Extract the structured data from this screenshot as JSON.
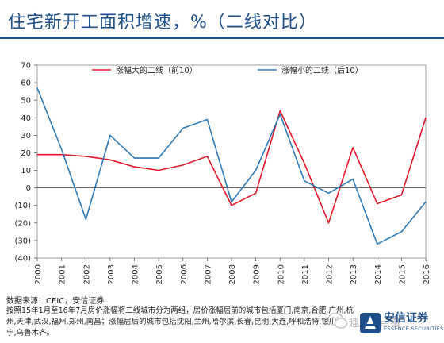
{
  "title": "住宅新开工面积增速，%（二线对比）",
  "source": "数据来源：CEIC，安信证券",
  "note": "按照15年1月至16年7月房价涨幅将二线城市分为两组，房价涨幅居前的城市包括厦门,南京,合肥,广州,杭州,天津,武汉,福州,郑州,南昌；涨幅居后的城市包括沈阳,兰州,哈尔滨,长春,昆明,大连,呼和浩特,银川,西宁,乌鲁木齐。",
  "watermark": "趣股那点事",
  "logo": {
    "cn": "安信证券",
    "en": "ESSENCE SECURITIES"
  },
  "colors": {
    "title": "#1f4f8a",
    "series1": "#e0192a",
    "series2": "#2e7ab8"
  },
  "chart_data": {
    "type": "line",
    "x": [
      "2000",
      "2001",
      "2002",
      "2003",
      "2004",
      "2005",
      "2006",
      "2007",
      "2008",
      "2009",
      "2010",
      "2011",
      "2012",
      "2013",
      "2014",
      "2015",
      "2016"
    ],
    "series": [
      {
        "name": "涨幅大的二线（前10）",
        "color": "#e0192a",
        "values": [
          19,
          19,
          18,
          16,
          12,
          10,
          13,
          18,
          -10,
          -3,
          44,
          14,
          -20,
          23,
          -9,
          -4,
          40
        ]
      },
      {
        "name": "涨幅小的二线（后10）",
        "color": "#2e7ab8",
        "values": [
          57,
          22,
          -18,
          30,
          17,
          17,
          34,
          39,
          -8,
          10,
          42,
          4,
          -3,
          5,
          -32,
          -25,
          -8
        ]
      }
    ],
    "yticks": [
      "70",
      "60",
      "50",
      "40",
      "30",
      "20",
      "10",
      "0",
      "(10)",
      "(20)",
      "(30)",
      "(40)"
    ],
    "ylim": [
      -40,
      70
    ],
    "legend_position": "top"
  }
}
